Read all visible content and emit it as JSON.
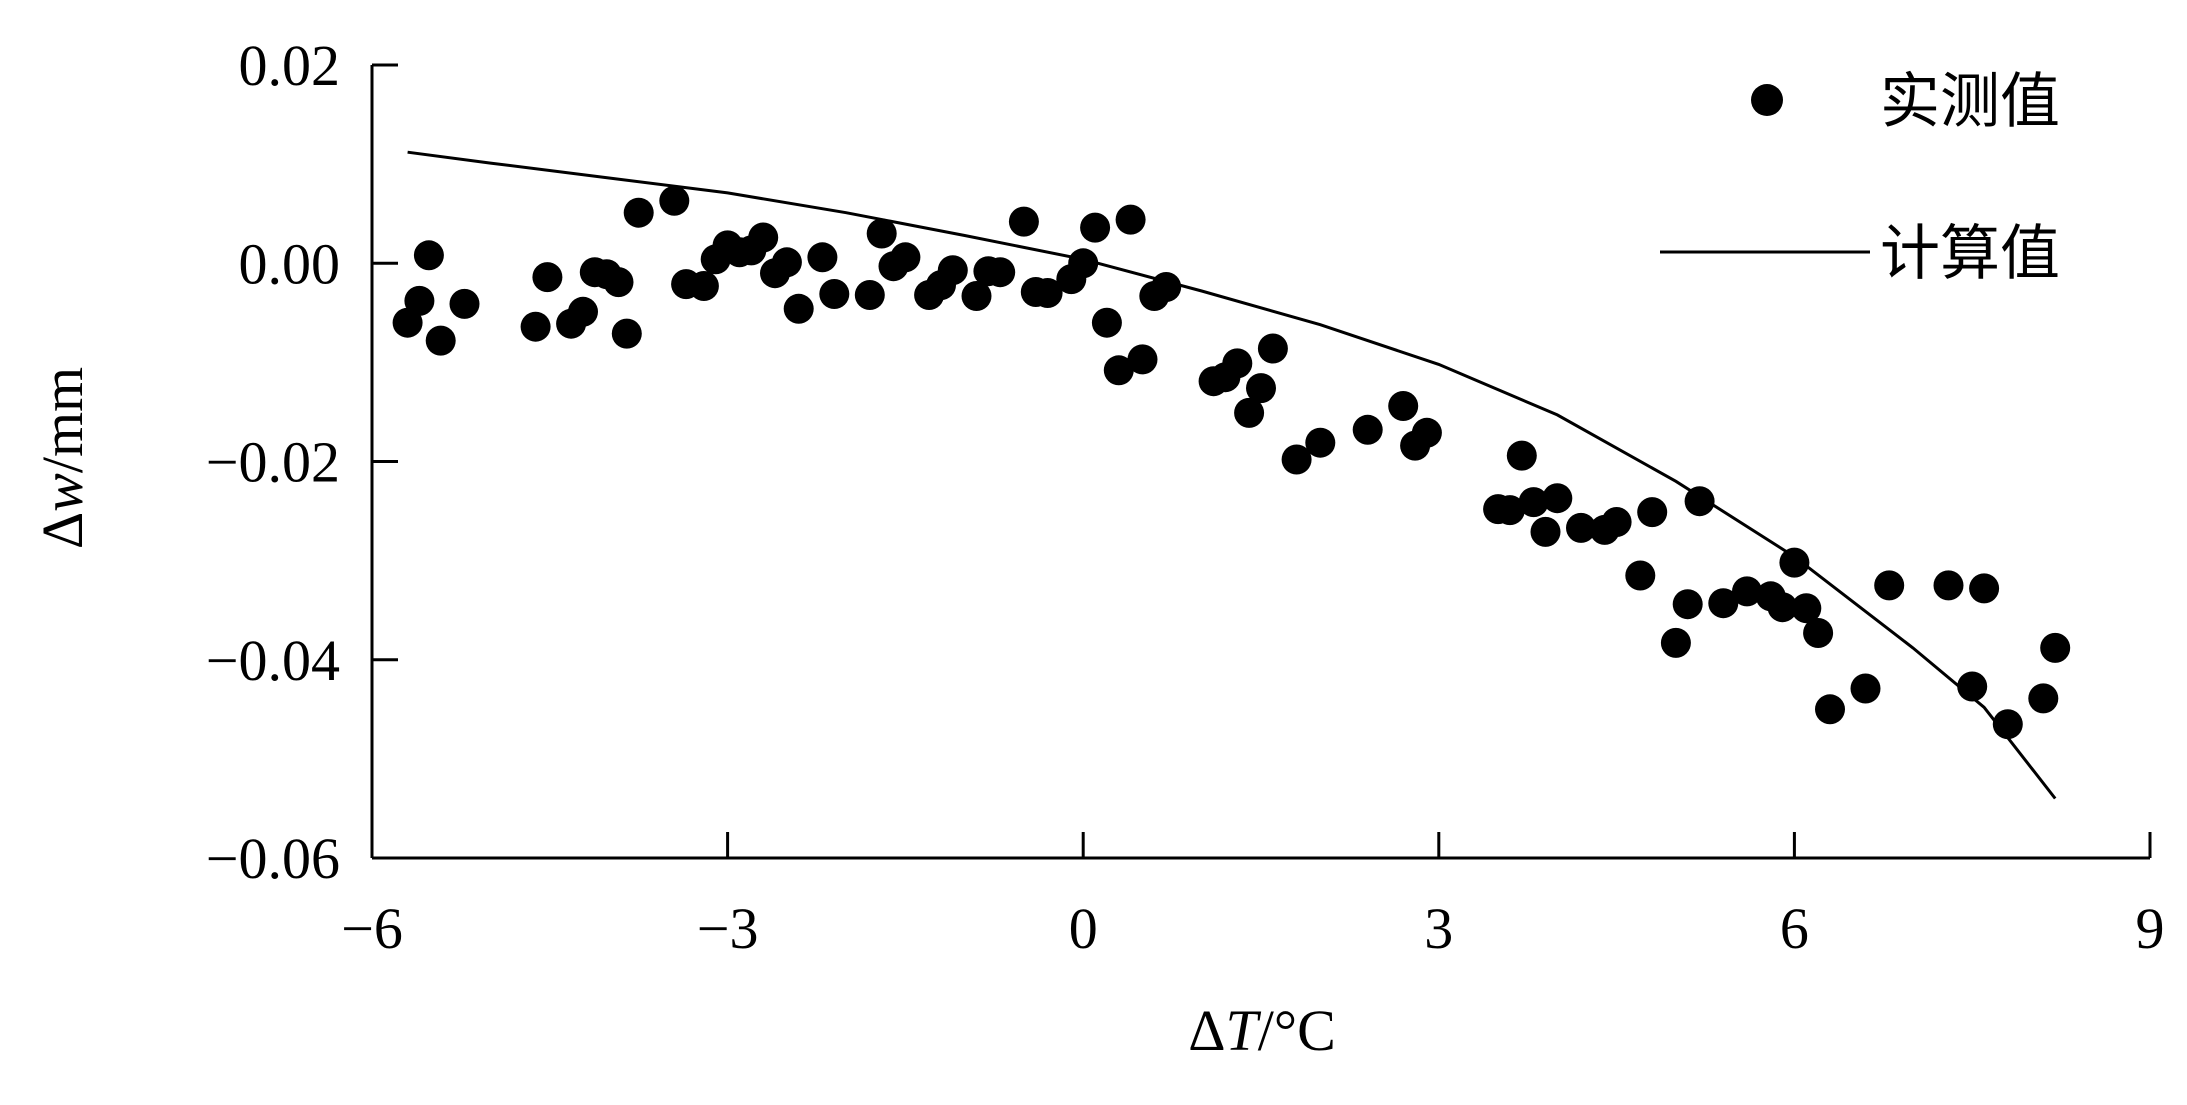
{
  "chart_data": {
    "type": "scatter",
    "x_axis": {
      "label_prefix": "Δ",
      "label_var": "T",
      "label_unit": "/°C",
      "range": [
        -6,
        9
      ],
      "ticks": [
        -6,
        -3,
        0,
        3,
        6,
        9
      ],
      "tick_labels": [
        "−6",
        "−3",
        "0",
        "3",
        "6",
        "9"
      ]
    },
    "y_axis": {
      "label_prefix": "Δ",
      "label_var": "w",
      "label_unit": "/mm",
      "range": [
        -0.06,
        0.02
      ],
      "ticks": [
        0.02,
        0.0,
        -0.02,
        -0.04,
        -0.06
      ],
      "tick_labels": [
        "0.02",
        "0.00",
        "−0.02",
        "−0.04",
        "−0.06"
      ]
    },
    "grid": false,
    "legend_position": "top-right",
    "series": [
      {
        "name": "实测值",
        "kind": "points",
        "color": "#000000",
        "points": [
          [
            -5.7,
            -0.006
          ],
          [
            -5.6,
            -0.0038
          ],
          [
            -5.52,
            0.0008
          ],
          [
            -5.42,
            -0.0078
          ],
          [
            -5.22,
            -0.0041
          ],
          [
            -4.62,
            -0.0064
          ],
          [
            -4.52,
            -0.0014
          ],
          [
            -4.32,
            -0.0061
          ],
          [
            -4.22,
            -0.0049
          ],
          [
            -4.12,
            -0.0009
          ],
          [
            -4.02,
            -0.0011
          ],
          [
            -3.92,
            -0.0019
          ],
          [
            -3.85,
            -0.0071
          ],
          [
            -3.75,
            0.0051
          ],
          [
            -3.45,
            0.0063
          ],
          [
            -3.35,
            -0.0021
          ],
          [
            -3.2,
            -0.0023
          ],
          [
            -3.1,
            0.0004
          ],
          [
            -3.0,
            0.0018
          ],
          [
            -2.9,
            0.0011
          ],
          [
            -2.8,
            0.0013
          ],
          [
            -2.7,
            0.0026
          ],
          [
            -2.6,
            -0.001
          ],
          [
            -2.5,
            0.0001
          ],
          [
            -2.4,
            -0.0046
          ],
          [
            -2.2,
            0.0006
          ],
          [
            -2.1,
            -0.0031
          ],
          [
            -1.8,
            -0.0032
          ],
          [
            -1.7,
            0.003
          ],
          [
            -1.6,
            -0.0003
          ],
          [
            -1.5,
            0.0006
          ],
          [
            -1.3,
            -0.0032
          ],
          [
            -1.2,
            -0.0022
          ],
          [
            -1.1,
            -0.0007
          ],
          [
            -0.9,
            -0.0033
          ],
          [
            -0.8,
            -0.0008
          ],
          [
            -0.7,
            -0.0009
          ],
          [
            -0.5,
            0.0042
          ],
          [
            -0.4,
            -0.0029
          ],
          [
            -0.3,
            -0.003
          ],
          [
            -0.1,
            -0.0016
          ],
          [
            0.0,
            0.0
          ],
          [
            0.1,
            0.0036
          ],
          [
            0.2,
            -0.006
          ],
          [
            0.3,
            -0.0108
          ],
          [
            0.4,
            0.0044
          ],
          [
            0.5,
            -0.0097
          ],
          [
            0.6,
            -0.0033
          ],
          [
            0.7,
            -0.0024
          ],
          [
            1.1,
            -0.0119
          ],
          [
            1.2,
            -0.0115
          ],
          [
            1.3,
            -0.0101
          ],
          [
            1.4,
            -0.0151
          ],
          [
            1.5,
            -0.0126
          ],
          [
            1.6,
            -0.0086
          ],
          [
            1.8,
            -0.0198
          ],
          [
            2.0,
            -0.0181
          ],
          [
            2.4,
            -0.0168
          ],
          [
            2.7,
            -0.0144
          ],
          [
            2.8,
            -0.0184
          ],
          [
            2.9,
            -0.0171
          ],
          [
            3.5,
            -0.0248
          ],
          [
            3.6,
            -0.0249
          ],
          [
            3.7,
            -0.0194
          ],
          [
            3.8,
            -0.0241
          ],
          [
            3.9,
            -0.0271
          ],
          [
            4.0,
            -0.0237
          ],
          [
            4.2,
            -0.0267
          ],
          [
            4.4,
            -0.0269
          ],
          [
            4.5,
            -0.0261
          ],
          [
            4.7,
            -0.0315
          ],
          [
            4.8,
            -0.0251
          ],
          [
            5.0,
            -0.0383
          ],
          [
            5.1,
            -0.0344
          ],
          [
            5.2,
            -0.024
          ],
          [
            5.4,
            -0.0343
          ],
          [
            5.6,
            -0.0331
          ],
          [
            5.8,
            -0.0336
          ],
          [
            5.9,
            -0.0347
          ],
          [
            6.0,
            -0.0302
          ],
          [
            6.1,
            -0.0348
          ],
          [
            6.2,
            -0.0373
          ],
          [
            6.3,
            -0.045
          ],
          [
            6.6,
            -0.0429
          ],
          [
            6.8,
            -0.0325
          ],
          [
            7.3,
            -0.0325
          ],
          [
            7.5,
            -0.0427
          ],
          [
            7.6,
            -0.0328
          ],
          [
            7.8,
            -0.0465
          ],
          [
            8.1,
            -0.0439
          ],
          [
            8.2,
            -0.0388
          ]
        ]
      },
      {
        "name": "计算值",
        "kind": "line",
        "color": "#000000",
        "points": [
          [
            -5.7,
            0.0112
          ],
          [
            -5,
            0.0101
          ],
          [
            -4,
            0.0086
          ],
          [
            -3,
            0.0071
          ],
          [
            -2,
            0.0051
          ],
          [
            -1,
            0.0028
          ],
          [
            0,
            0.0004
          ],
          [
            1,
            -0.0028
          ],
          [
            2,
            -0.0062
          ],
          [
            3,
            -0.0102
          ],
          [
            4,
            -0.0153
          ],
          [
            5,
            -0.022
          ],
          [
            6,
            -0.0296
          ],
          [
            7,
            -0.0388
          ],
          [
            7.6,
            -0.0448
          ],
          [
            8.2,
            -0.054
          ]
        ]
      }
    ]
  }
}
